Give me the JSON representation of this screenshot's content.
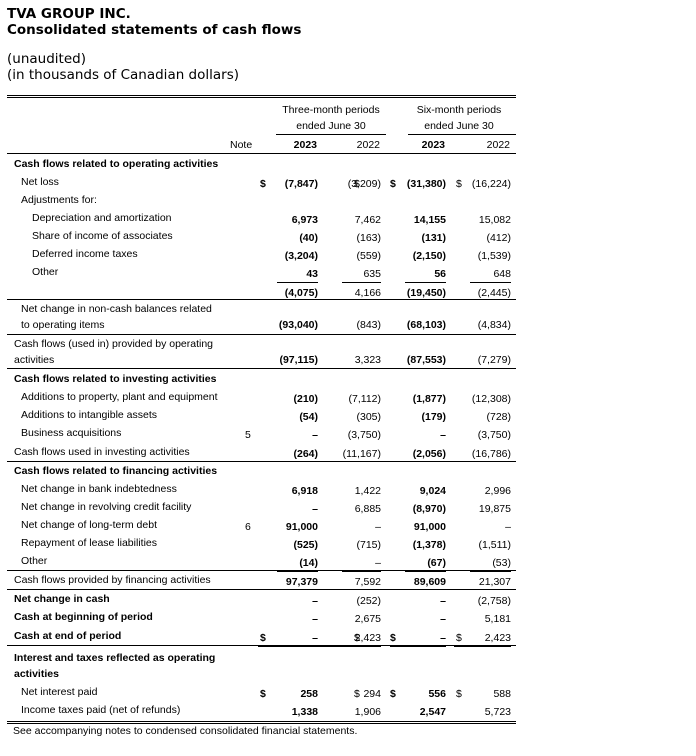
{
  "company": "TVA GROUP INC.",
  "statement_title": "Consolidated statements of cash flows",
  "subtitle1": "(unaudited)",
  "subtitle2": "(in thousands of Canadian dollars)",
  "col_heads": {
    "three_month": [
      "Three-month periods",
      "ended June 30"
    ],
    "six_month": [
      "Six-month periods",
      "ended June 30"
    ],
    "note": "Note",
    "years": [
      "2023",
      "2022",
      "2023",
      "2022"
    ]
  },
  "rows": [
    {
      "label": "Cash flows related to operating activities",
      "indent": 0,
      "bold": true,
      "note": "",
      "vals": [
        "",
        "",
        "",
        ""
      ],
      "cur": [
        "",
        "",
        "",
        ""
      ]
    },
    {
      "label": "Net loss",
      "indent": 1,
      "bold": false,
      "note": "",
      "vals": [
        "(7,847)",
        "(3,209)",
        "(31,380)",
        "(16,224)"
      ],
      "cur": [
        "$",
        "$",
        "$",
        "$"
      ]
    },
    {
      "label": "Adjustments for:",
      "indent": 1,
      "bold": false,
      "note": "",
      "vals": [
        "",
        "",
        "",
        ""
      ],
      "cur": [
        "",
        "",
        "",
        ""
      ]
    },
    {
      "label": "Depreciation and amortization",
      "indent": 2,
      "bold": false,
      "note": "",
      "vals": [
        "6,973",
        "7,462",
        "14,155",
        "15,082"
      ],
      "cur": [
        "",
        "",
        "",
        ""
      ]
    },
    {
      "label": "Share of income of associates",
      "indent": 2,
      "bold": false,
      "note": "",
      "vals": [
        "(40)",
        "(163)",
        "(131)",
        "(412)"
      ],
      "cur": [
        "",
        "",
        "",
        ""
      ]
    },
    {
      "label": "Deferred income taxes",
      "indent": 2,
      "bold": false,
      "note": "",
      "vals": [
        "(3,204)",
        "(559)",
        "(2,150)",
        "(1,539)"
      ],
      "cur": [
        "",
        "",
        "",
        ""
      ]
    },
    {
      "label": "Other",
      "indent": 2,
      "bold": false,
      "note": "",
      "vals": [
        "43",
        "635",
        "56",
        "648"
      ],
      "cur": [
        "",
        "",
        "",
        ""
      ]
    },
    {
      "label": "",
      "indent": 0,
      "bold": false,
      "note": "",
      "vals": [
        "(4,075)",
        "4,166",
        "(19,450)",
        "(2,445)"
      ],
      "cur": [
        "",
        "",
        "",
        ""
      ]
    },
    {
      "label": "Net change in non-cash balances related",
      "label2": "to operating items",
      "indent": 1,
      "bold": false,
      "note": "",
      "vals": [
        "(93,040)",
        "(843)",
        "(68,103)",
        "(4,834)"
      ],
      "cur": [
        "",
        "",
        "",
        ""
      ]
    },
    {
      "label": "Cash flows (used in) provided by operating",
      "label2": "activities",
      "indent": 0,
      "bold": false,
      "note": "",
      "vals": [
        "(97,115)",
        "3,323",
        "(87,553)",
        "(7,279)"
      ],
      "cur": [
        "",
        "",
        "",
        ""
      ]
    },
    {
      "label": "Cash flows related to investing activities",
      "indent": 0,
      "bold": true,
      "note": "",
      "vals": [
        "",
        "",
        "",
        ""
      ],
      "cur": [
        "",
        "",
        "",
        ""
      ]
    },
    {
      "label": "Additions to property, plant and equipment",
      "indent": 1,
      "bold": false,
      "note": "",
      "vals": [
        "(210)",
        "(7,112)",
        "(1,877)",
        "(12,308)"
      ],
      "cur": [
        "",
        "",
        "",
        ""
      ]
    },
    {
      "label": "Additions to intangible assets",
      "indent": 1,
      "bold": false,
      "note": "",
      "vals": [
        "(54)",
        "(305)",
        "(179)",
        "(728)"
      ],
      "cur": [
        "",
        "",
        "",
        ""
      ]
    },
    {
      "label": "Business acquisitions",
      "indent": 1,
      "bold": false,
      "note": "5",
      "vals": [
        "–",
        "(3,750)",
        "–",
        "(3,750)"
      ],
      "cur": [
        "",
        "",
        "",
        ""
      ]
    },
    {
      "label": "Cash flows used in investing activities",
      "indent": 0,
      "bold": false,
      "note": "",
      "vals": [
        "(264)",
        "(11,167)",
        "(2,056)",
        "(16,786)"
      ],
      "cur": [
        "",
        "",
        "",
        ""
      ]
    },
    {
      "label": "Cash flows related to financing activities",
      "indent": 0,
      "bold": true,
      "note": "",
      "vals": [
        "",
        "",
        "",
        ""
      ],
      "cur": [
        "",
        "",
        "",
        ""
      ]
    },
    {
      "label": "Net change in bank indebtedness",
      "indent": 1,
      "bold": false,
      "note": "",
      "vals": [
        "6,918",
        "1,422",
        "9,024",
        "2,996"
      ],
      "cur": [
        "",
        "",
        "",
        ""
      ]
    },
    {
      "label": "Net change in revolving credit facility",
      "indent": 1,
      "bold": false,
      "note": "",
      "vals": [
        "–",
        "6,885",
        "(8,970)",
        "19,875"
      ],
      "cur": [
        "",
        "",
        "",
        ""
      ]
    },
    {
      "label": "Net change of long-term debt",
      "indent": 1,
      "bold": false,
      "note": "6",
      "vals": [
        "91,000",
        "–",
        "91,000",
        "–"
      ],
      "cur": [
        "",
        "",
        "",
        ""
      ]
    },
    {
      "label": "Repayment of lease liabilities",
      "indent": 1,
      "bold": false,
      "note": "",
      "vals": [
        "(525)",
        "(715)",
        "(1,378)",
        "(1,511)"
      ],
      "cur": [
        "",
        "",
        "",
        ""
      ]
    },
    {
      "label": "Other",
      "indent": 1,
      "bold": false,
      "note": "",
      "vals": [
        "(14)",
        "–",
        "(67)",
        "(53)"
      ],
      "cur": [
        "",
        "",
        "",
        ""
      ]
    },
    {
      "label": "Cash flows provided by financing activities",
      "indent": 0,
      "bold": false,
      "note": "",
      "vals": [
        "97,379",
        "7,592",
        "89,609",
        "21,307"
      ],
      "cur": [
        "",
        "",
        "",
        ""
      ]
    },
    {
      "label": "Net change in cash",
      "indent": 0,
      "bold": true,
      "note": "",
      "vals": [
        "–",
        "(252)",
        "–",
        "(2,758)"
      ],
      "cur": [
        "",
        "",
        "",
        ""
      ]
    },
    {
      "label": "Cash at beginning of period",
      "indent": 0,
      "bold": true,
      "note": "",
      "vals": [
        "–",
        "2,675",
        "–",
        "5,181"
      ],
      "cur": [
        "",
        "",
        "",
        ""
      ]
    },
    {
      "label": "Cash at end of period",
      "indent": 0,
      "bold": true,
      "note": "",
      "vals": [
        "–",
        "2,423",
        "–",
        "2,423"
      ],
      "cur": [
        "$",
        "$",
        "$",
        "$"
      ]
    },
    {
      "label": "Interest and taxes reflected as operating",
      "label2": "activities",
      "indent": 0,
      "bold": true,
      "note": "",
      "vals": [
        "",
        "",
        "",
        ""
      ],
      "cur": [
        "",
        "",
        "",
        ""
      ]
    },
    {
      "label": "Net interest paid",
      "indent": 1,
      "bold": false,
      "note": "",
      "vals": [
        "258",
        "294",
        "556",
        "588"
      ],
      "cur": [
        "$",
        "$",
        "$",
        "$"
      ]
    },
    {
      "label": "Income taxes paid (net of refunds)",
      "indent": 1,
      "bold": false,
      "note": "",
      "vals": [
        "1,338",
        "1,906",
        "2,547",
        "5,723"
      ],
      "cur": [
        "",
        "",
        "",
        ""
      ]
    }
  ],
  "footnote": "See accompanying notes to condensed consolidated financial statements."
}
